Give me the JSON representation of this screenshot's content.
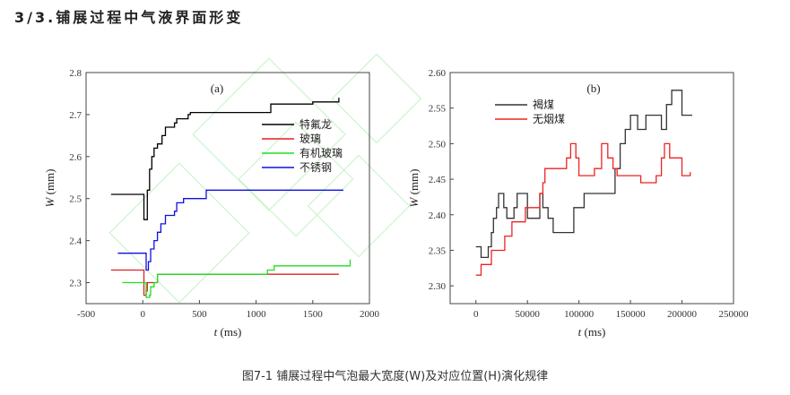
{
  "page": {
    "title": "3/3.铺展过程中气液界面形变",
    "caption": "图7-1 铺展过程中气泡最大宽度(W)及对应位置(H)演化规律"
  },
  "chart_data": [
    {
      "type": "line",
      "panel_label": "(a)",
      "xlabel": "t (ms)",
      "ylabel": "W (mm)",
      "xlim": [
        -500,
        2000
      ],
      "ylim": [
        2.25,
        2.8
      ],
      "xticks": [
        -500,
        0,
        500,
        1000,
        1500,
        2000
      ],
      "yticks": [
        2.3,
        2.4,
        2.5,
        2.6,
        2.7,
        2.8
      ],
      "legend": "right",
      "grid": false,
      "series": [
        {
          "name": "特氟龙",
          "color": "#000000",
          "points": [
            [
              -280,
              2.51
            ],
            [
              0,
              2.51
            ],
            [
              10,
              2.45
            ],
            [
              25,
              2.45
            ],
            [
              40,
              2.52
            ],
            [
              60,
              2.57
            ],
            [
              80,
              2.6
            ],
            [
              100,
              2.62
            ],
            [
              130,
              2.63
            ],
            [
              170,
              2.65
            ],
            [
              200,
              2.67
            ],
            [
              280,
              2.68
            ],
            [
              300,
              2.69
            ],
            [
              400,
              2.7
            ],
            [
              420,
              2.705
            ],
            [
              1100,
              2.705
            ],
            [
              1130,
              2.725
            ],
            [
              1500,
              2.73
            ],
            [
              1730,
              2.74
            ]
          ]
        },
        {
          "name": "玻璃",
          "color": "#e02020",
          "points": [
            [
              -280,
              2.33
            ],
            [
              0,
              2.33
            ],
            [
              10,
              2.27
            ],
            [
              30,
              2.28
            ],
            [
              40,
              2.3
            ],
            [
              120,
              2.3
            ],
            [
              130,
              2.32
            ],
            [
              1730,
              2.32
            ]
          ]
        },
        {
          "name": "有机玻璃",
          "color": "#22dd22",
          "points": [
            [
              -180,
              2.3
            ],
            [
              20,
              2.3
            ],
            [
              30,
              2.265
            ],
            [
              60,
              2.27
            ],
            [
              70,
              2.29
            ],
            [
              100,
              2.3
            ],
            [
              130,
              2.32
            ],
            [
              500,
              2.32
            ],
            [
              1100,
              2.33
            ],
            [
              1160,
              2.34
            ],
            [
              1830,
              2.355
            ]
          ]
        },
        {
          "name": "不锈钢",
          "color": "#1010e0",
          "points": [
            [
              -220,
              2.37
            ],
            [
              20,
              2.37
            ],
            [
              30,
              2.33
            ],
            [
              50,
              2.35
            ],
            [
              70,
              2.38
            ],
            [
              100,
              2.4
            ],
            [
              130,
              2.42
            ],
            [
              160,
              2.44
            ],
            [
              200,
              2.46
            ],
            [
              280,
              2.47
            ],
            [
              300,
              2.49
            ],
            [
              360,
              2.5
            ],
            [
              540,
              2.5
            ],
            [
              560,
              2.52
            ],
            [
              1770,
              2.52
            ]
          ]
        }
      ]
    },
    {
      "type": "line",
      "panel_label": "(b)",
      "xlabel": "t (ms)",
      "ylabel": "W (mm)",
      "xlim": [
        -25000,
        250000
      ],
      "ylim": [
        2.275,
        2.6
      ],
      "xticks": [
        0,
        50000,
        100000,
        150000,
        200000,
        250000
      ],
      "yticks": [
        2.3,
        2.35,
        2.4,
        2.45,
        2.5,
        2.55,
        2.6
      ],
      "legend": "top-left",
      "grid": false,
      "series": [
        {
          "name": "褐煤",
          "color": "#333333",
          "points": [
            [
              0,
              2.355
            ],
            [
              5000,
              2.34
            ],
            [
              10000,
              2.34
            ],
            [
              12000,
              2.355
            ],
            [
              15000,
              2.375
            ],
            [
              17000,
              2.395
            ],
            [
              20000,
              2.41
            ],
            [
              22000,
              2.43
            ],
            [
              25000,
              2.43
            ],
            [
              27000,
              2.41
            ],
            [
              30000,
              2.395
            ],
            [
              35000,
              2.395
            ],
            [
              37000,
              2.41
            ],
            [
              40000,
              2.43
            ],
            [
              48000,
              2.43
            ],
            [
              50000,
              2.395
            ],
            [
              60000,
              2.395
            ],
            [
              62000,
              2.43
            ],
            [
              65000,
              2.41
            ],
            [
              70000,
              2.395
            ],
            [
              75000,
              2.375
            ],
            [
              90000,
              2.375
            ],
            [
              95000,
              2.41
            ],
            [
              100000,
              2.41
            ],
            [
              105000,
              2.43
            ],
            [
              130000,
              2.43
            ],
            [
              135000,
              2.465
            ],
            [
              140000,
              2.5
            ],
            [
              145000,
              2.52
            ],
            [
              150000,
              2.54
            ],
            [
              157000,
              2.52
            ],
            [
              165000,
              2.54
            ],
            [
              180000,
              2.52
            ],
            [
              185000,
              2.555
            ],
            [
              190000,
              2.575
            ],
            [
              198000,
              2.575
            ],
            [
              200000,
              2.54
            ],
            [
              210000,
              2.54
            ]
          ]
        },
        {
          "name": "无烟煤",
          "color": "#ee2222",
          "points": [
            [
              0,
              2.315
            ],
            [
              5000,
              2.33
            ],
            [
              15000,
              2.35
            ],
            [
              25000,
              2.35
            ],
            [
              28000,
              2.37
            ],
            [
              35000,
              2.39
            ],
            [
              45000,
              2.39
            ],
            [
              48000,
              2.41
            ],
            [
              60000,
              2.41
            ],
            [
              62000,
              2.43
            ],
            [
              65000,
              2.445
            ],
            [
              67000,
              2.465
            ],
            [
              85000,
              2.465
            ],
            [
              88000,
              2.48
            ],
            [
              92000,
              2.5
            ],
            [
              97000,
              2.48
            ],
            [
              100000,
              2.455
            ],
            [
              115000,
              2.465
            ],
            [
              122000,
              2.5
            ],
            [
              128000,
              2.48
            ],
            [
              133000,
              2.465
            ],
            [
              137000,
              2.455
            ],
            [
              160000,
              2.445
            ],
            [
              175000,
              2.455
            ],
            [
              180000,
              2.48
            ],
            [
              183000,
              2.5
            ],
            [
              188000,
              2.48
            ],
            [
              198000,
              2.48
            ],
            [
              200000,
              2.455
            ],
            [
              208000,
              2.46
            ]
          ]
        }
      ]
    }
  ]
}
